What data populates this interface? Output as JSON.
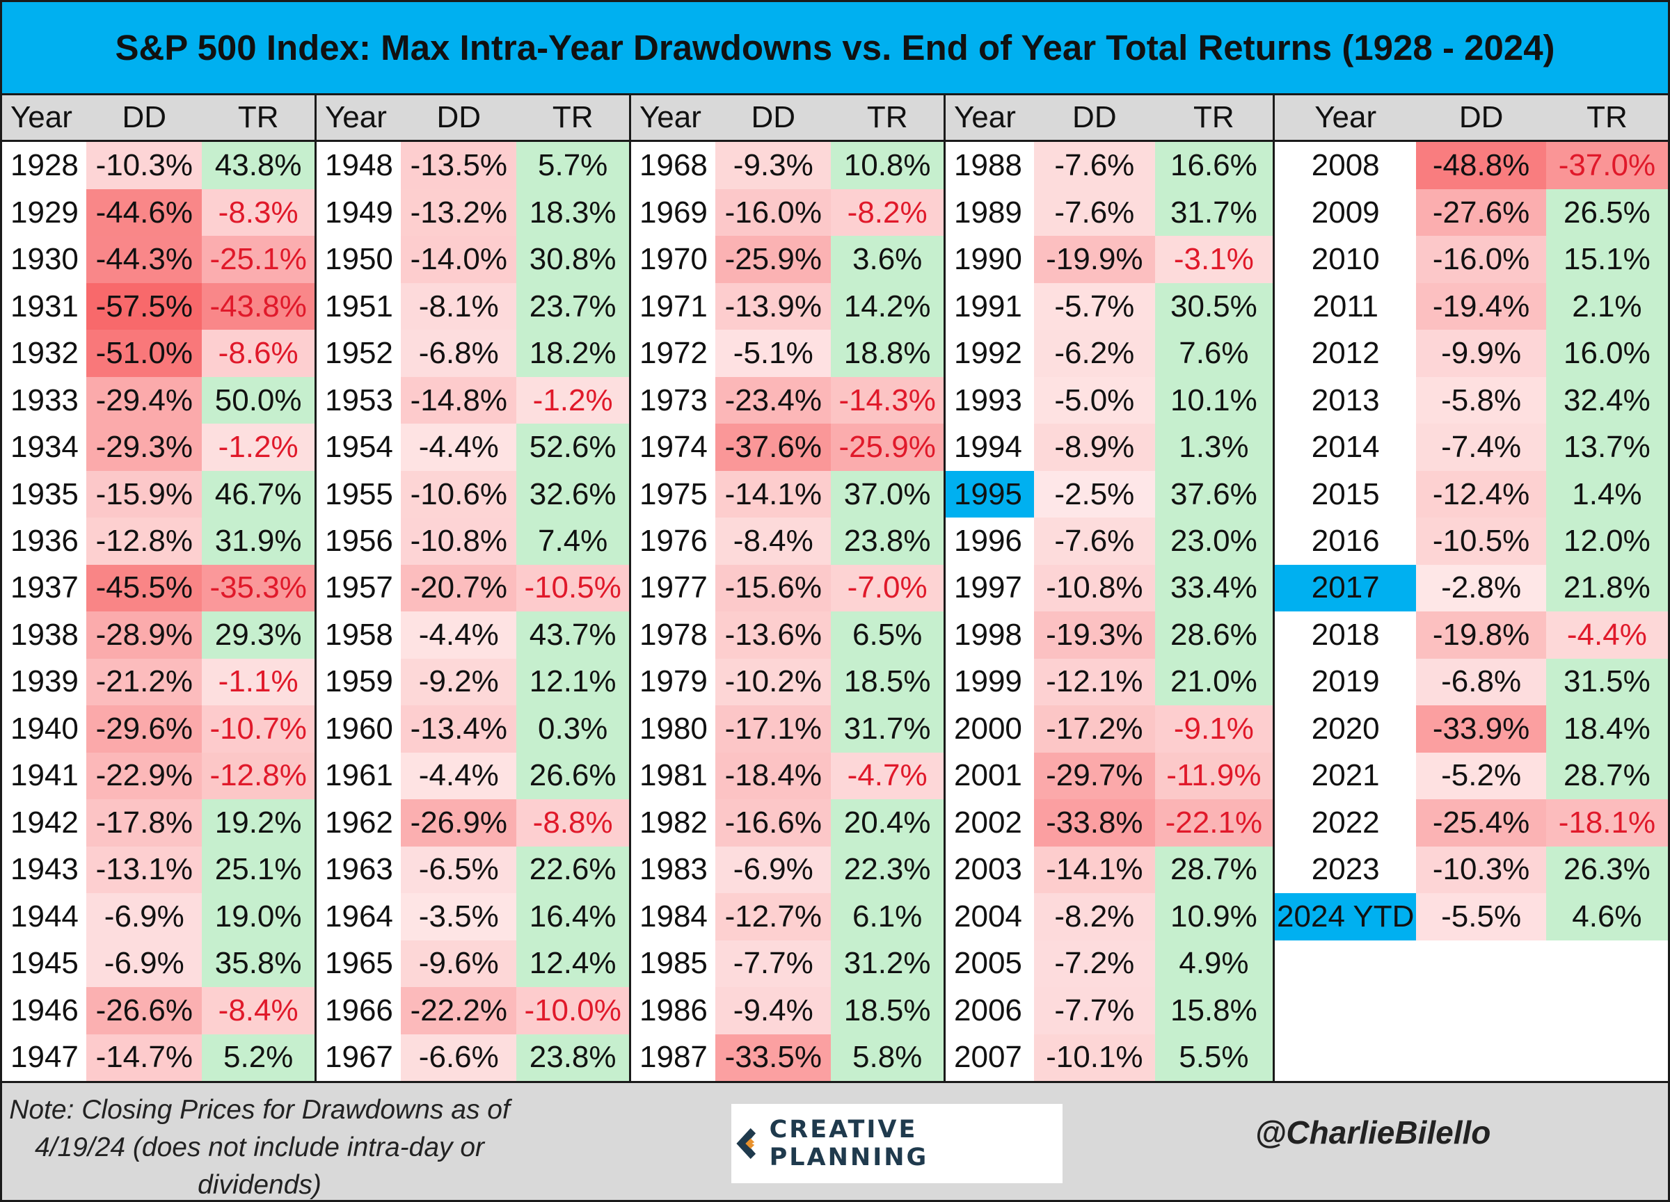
{
  "title": "S&P 500 Index: Max Intra-Year Drawdowns vs. End of Year Total Returns (1928 - 2024)",
  "headers": {
    "year": "Year",
    "dd": "DD",
    "tr": "TR"
  },
  "colors": {
    "title_bg": "#00b0f0",
    "highlight": "#00b0f0",
    "neg_text": "#e0192a",
    "red_base": [
      248,
      105,
      107
    ],
    "green_base": [
      198,
      239,
      206
    ]
  },
  "chart_data": {
    "type": "table",
    "title": "S&P 500 Index: Max Intra-Year Drawdowns vs. End of Year Total Returns (1928 - 2024)",
    "columns": [
      "Year",
      "DD",
      "TR"
    ],
    "highlighted_years": [
      "1995",
      "2017",
      "2024 YTD"
    ],
    "blocks": [
      [
        {
          "year": "1928",
          "dd": "-10.3%",
          "tr": "43.8%"
        },
        {
          "year": "1929",
          "dd": "-44.6%",
          "tr": "-8.3%"
        },
        {
          "year": "1930",
          "dd": "-44.3%",
          "tr": "-25.1%"
        },
        {
          "year": "1931",
          "dd": "-57.5%",
          "tr": "-43.8%"
        },
        {
          "year": "1932",
          "dd": "-51.0%",
          "tr": "-8.6%"
        },
        {
          "year": "1933",
          "dd": "-29.4%",
          "tr": "50.0%"
        },
        {
          "year": "1934",
          "dd": "-29.3%",
          "tr": "-1.2%"
        },
        {
          "year": "1935",
          "dd": "-15.9%",
          "tr": "46.7%"
        },
        {
          "year": "1936",
          "dd": "-12.8%",
          "tr": "31.9%"
        },
        {
          "year": "1937",
          "dd": "-45.5%",
          "tr": "-35.3%"
        },
        {
          "year": "1938",
          "dd": "-28.9%",
          "tr": "29.3%"
        },
        {
          "year": "1939",
          "dd": "-21.2%",
          "tr": "-1.1%"
        },
        {
          "year": "1940",
          "dd": "-29.6%",
          "tr": "-10.7%"
        },
        {
          "year": "1941",
          "dd": "-22.9%",
          "tr": "-12.8%"
        },
        {
          "year": "1942",
          "dd": "-17.8%",
          "tr": "19.2%"
        },
        {
          "year": "1943",
          "dd": "-13.1%",
          "tr": "25.1%"
        },
        {
          "year": "1944",
          "dd": "-6.9%",
          "tr": "19.0%"
        },
        {
          "year": "1945",
          "dd": "-6.9%",
          "tr": "35.8%"
        },
        {
          "year": "1946",
          "dd": "-26.6%",
          "tr": "-8.4%"
        },
        {
          "year": "1947",
          "dd": "-14.7%",
          "tr": "5.2%"
        }
      ],
      [
        {
          "year": "1948",
          "dd": "-13.5%",
          "tr": "5.7%"
        },
        {
          "year": "1949",
          "dd": "-13.2%",
          "tr": "18.3%"
        },
        {
          "year": "1950",
          "dd": "-14.0%",
          "tr": "30.8%"
        },
        {
          "year": "1951",
          "dd": "-8.1%",
          "tr": "23.7%"
        },
        {
          "year": "1952",
          "dd": "-6.8%",
          "tr": "18.2%"
        },
        {
          "year": "1953",
          "dd": "-14.8%",
          "tr": "-1.2%"
        },
        {
          "year": "1954",
          "dd": "-4.4%",
          "tr": "52.6%"
        },
        {
          "year": "1955",
          "dd": "-10.6%",
          "tr": "32.6%"
        },
        {
          "year": "1956",
          "dd": "-10.8%",
          "tr": "7.4%"
        },
        {
          "year": "1957",
          "dd": "-20.7%",
          "tr": "-10.5%"
        },
        {
          "year": "1958",
          "dd": "-4.4%",
          "tr": "43.7%"
        },
        {
          "year": "1959",
          "dd": "-9.2%",
          "tr": "12.1%"
        },
        {
          "year": "1960",
          "dd": "-13.4%",
          "tr": "0.3%"
        },
        {
          "year": "1961",
          "dd": "-4.4%",
          "tr": "26.6%"
        },
        {
          "year": "1962",
          "dd": "-26.9%",
          "tr": "-8.8%"
        },
        {
          "year": "1963",
          "dd": "-6.5%",
          "tr": "22.6%"
        },
        {
          "year": "1964",
          "dd": "-3.5%",
          "tr": "16.4%"
        },
        {
          "year": "1965",
          "dd": "-9.6%",
          "tr": "12.4%"
        },
        {
          "year": "1966",
          "dd": "-22.2%",
          "tr": "-10.0%"
        },
        {
          "year": "1967",
          "dd": "-6.6%",
          "tr": "23.8%"
        }
      ],
      [
        {
          "year": "1968",
          "dd": "-9.3%",
          "tr": "10.8%"
        },
        {
          "year": "1969",
          "dd": "-16.0%",
          "tr": "-8.2%"
        },
        {
          "year": "1970",
          "dd": "-25.9%",
          "tr": "3.6%"
        },
        {
          "year": "1971",
          "dd": "-13.9%",
          "tr": "14.2%"
        },
        {
          "year": "1972",
          "dd": "-5.1%",
          "tr": "18.8%"
        },
        {
          "year": "1973",
          "dd": "-23.4%",
          "tr": "-14.3%"
        },
        {
          "year": "1974",
          "dd": "-37.6%",
          "tr": "-25.9%"
        },
        {
          "year": "1975",
          "dd": "-14.1%",
          "tr": "37.0%"
        },
        {
          "year": "1976",
          "dd": "-8.4%",
          "tr": "23.8%"
        },
        {
          "year": "1977",
          "dd": "-15.6%",
          "tr": "-7.0%"
        },
        {
          "year": "1978",
          "dd": "-13.6%",
          "tr": "6.5%"
        },
        {
          "year": "1979",
          "dd": "-10.2%",
          "tr": "18.5%"
        },
        {
          "year": "1980",
          "dd": "-17.1%",
          "tr": "31.7%"
        },
        {
          "year": "1981",
          "dd": "-18.4%",
          "tr": "-4.7%"
        },
        {
          "year": "1982",
          "dd": "-16.6%",
          "tr": "20.4%"
        },
        {
          "year": "1983",
          "dd": "-6.9%",
          "tr": "22.3%"
        },
        {
          "year": "1984",
          "dd": "-12.7%",
          "tr": "6.1%"
        },
        {
          "year": "1985",
          "dd": "-7.7%",
          "tr": "31.2%"
        },
        {
          "year": "1986",
          "dd": "-9.4%",
          "tr": "18.5%"
        },
        {
          "year": "1987",
          "dd": "-33.5%",
          "tr": "5.8%"
        }
      ],
      [
        {
          "year": "1988",
          "dd": "-7.6%",
          "tr": "16.6%"
        },
        {
          "year": "1989",
          "dd": "-7.6%",
          "tr": "31.7%"
        },
        {
          "year": "1990",
          "dd": "-19.9%",
          "tr": "-3.1%"
        },
        {
          "year": "1991",
          "dd": "-5.7%",
          "tr": "30.5%"
        },
        {
          "year": "1992",
          "dd": "-6.2%",
          "tr": "7.6%"
        },
        {
          "year": "1993",
          "dd": "-5.0%",
          "tr": "10.1%"
        },
        {
          "year": "1994",
          "dd": "-8.9%",
          "tr": "1.3%"
        },
        {
          "year": "1995",
          "dd": "-2.5%",
          "tr": "37.6%"
        },
        {
          "year": "1996",
          "dd": "-7.6%",
          "tr": "23.0%"
        },
        {
          "year": "1997",
          "dd": "-10.8%",
          "tr": "33.4%"
        },
        {
          "year": "1998",
          "dd": "-19.3%",
          "tr": "28.6%"
        },
        {
          "year": "1999",
          "dd": "-12.1%",
          "tr": "21.0%"
        },
        {
          "year": "2000",
          "dd": "-17.2%",
          "tr": "-9.1%"
        },
        {
          "year": "2001",
          "dd": "-29.7%",
          "tr": "-11.9%"
        },
        {
          "year": "2002",
          "dd": "-33.8%",
          "tr": "-22.1%"
        },
        {
          "year": "2003",
          "dd": "-14.1%",
          "tr": "28.7%"
        },
        {
          "year": "2004",
          "dd": "-8.2%",
          "tr": "10.9%"
        },
        {
          "year": "2005",
          "dd": "-7.2%",
          "tr": "4.9%"
        },
        {
          "year": "2006",
          "dd": "-7.7%",
          "tr": "15.8%"
        },
        {
          "year": "2007",
          "dd": "-10.1%",
          "tr": "5.5%"
        }
      ],
      [
        {
          "year": "2008",
          "dd": "-48.8%",
          "tr": "-37.0%"
        },
        {
          "year": "2009",
          "dd": "-27.6%",
          "tr": "26.5%"
        },
        {
          "year": "2010",
          "dd": "-16.0%",
          "tr": "15.1%"
        },
        {
          "year": "2011",
          "dd": "-19.4%",
          "tr": "2.1%"
        },
        {
          "year": "2012",
          "dd": "-9.9%",
          "tr": "16.0%"
        },
        {
          "year": "2013",
          "dd": "-5.8%",
          "tr": "32.4%"
        },
        {
          "year": "2014",
          "dd": "-7.4%",
          "tr": "13.7%"
        },
        {
          "year": "2015",
          "dd": "-12.4%",
          "tr": "1.4%"
        },
        {
          "year": "2016",
          "dd": "-10.5%",
          "tr": "12.0%"
        },
        {
          "year": "2017",
          "dd": "-2.8%",
          "tr": "21.8%"
        },
        {
          "year": "2018",
          "dd": "-19.8%",
          "tr": "-4.4%"
        },
        {
          "year": "2019",
          "dd": "-6.8%",
          "tr": "31.5%"
        },
        {
          "year": "2020",
          "dd": "-33.9%",
          "tr": "18.4%"
        },
        {
          "year": "2021",
          "dd": "-5.2%",
          "tr": "28.7%"
        },
        {
          "year": "2022",
          "dd": "-25.4%",
          "tr": "-18.1%"
        },
        {
          "year": "2023",
          "dd": "-10.3%",
          "tr": "26.3%"
        },
        {
          "year": "2024 YTD",
          "dd": "-5.5%",
          "tr": "4.6%"
        }
      ]
    ]
  },
  "footer": {
    "note": "Note: Closing Prices for Drawdowns as of 4/19/24 (does not include intra-day or dividends)",
    "logo_text": "CREATIVE PLANNING",
    "logo_icon": "creative-planning-c-icon",
    "handle": "@CharlieBilello"
  }
}
